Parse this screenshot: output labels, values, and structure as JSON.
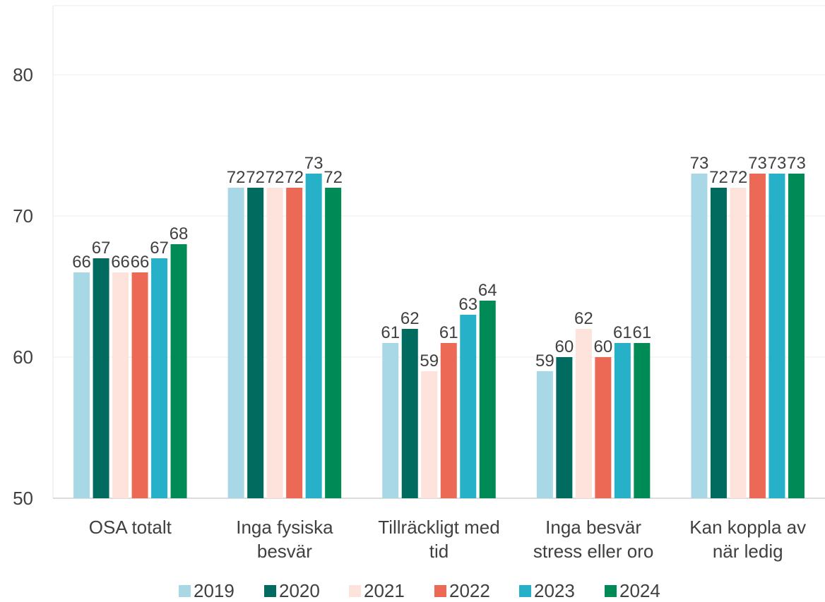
{
  "chart_data": {
    "type": "bar",
    "categories": [
      [
        "OSA totalt"
      ],
      [
        "Inga fysiska",
        "besvär"
      ],
      [
        "Tillräckligt med",
        "tid"
      ],
      [
        "Inga besvär",
        "stress eller oro"
      ],
      [
        "Kan koppla av",
        "när ledig"
      ]
    ],
    "series": [
      {
        "name": "2019",
        "color": "#a8d8e6",
        "values": [
          66,
          72,
          61,
          59,
          73
        ]
      },
      {
        "name": "2020",
        "color": "#006b5e",
        "values": [
          67,
          72,
          62,
          60,
          72
        ]
      },
      {
        "name": "2021",
        "color": "#fde3dc",
        "values": [
          66,
          72,
          59,
          62,
          72
        ]
      },
      {
        "name": "2022",
        "color": "#ec6a55",
        "values": [
          66,
          72,
          61,
          60,
          73
        ]
      },
      {
        "name": "2023",
        "color": "#26b1c9",
        "values": [
          67,
          73,
          63,
          61,
          73
        ]
      },
      {
        "name": "2024",
        "color": "#008a55",
        "values": [
          68,
          72,
          64,
          61,
          73
        ]
      }
    ],
    "yticks": [
      50,
      60,
      70,
      80
    ],
    "ylim": [
      50,
      85
    ],
    "grid": true,
    "legend_position": "bottom"
  }
}
